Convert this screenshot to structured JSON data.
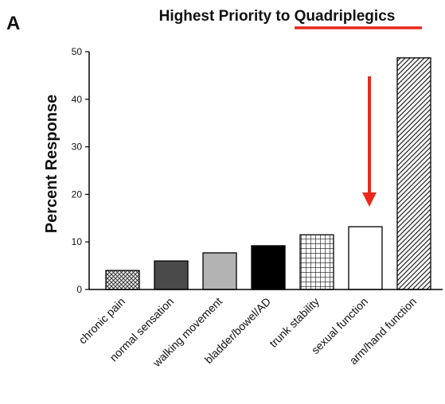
{
  "panel_letter": "A",
  "title_prefix": "Highest Priority to ",
  "title_emphasis": "Quadriplegics",
  "annotation_color": "#e8291c",
  "chart_data": {
    "type": "bar",
    "title": "Highest Priority to Quadriplegics",
    "xlabel": "",
    "ylabel": "Percent Response",
    "ylim": [
      0,
      50
    ],
    "yticks": [
      0,
      10,
      20,
      30,
      40,
      50
    ],
    "grid": false,
    "categories": [
      "chronic pain",
      "normal sensation",
      "walking movement",
      "bladder/bowel/AD",
      "trunk stability",
      "sexual function",
      "arm/hand function"
    ],
    "values": [
      4,
      6,
      7.7,
      9.2,
      11.5,
      13.2,
      48.7
    ],
    "fills": [
      "crosshatch",
      "#4a4a4a",
      "#b3b3b3",
      "#000000",
      "grid",
      "#ffffff",
      "diagonal"
    ],
    "annotations": [
      {
        "type": "arrow",
        "points_to": "sexual function",
        "color": "#e8291c"
      },
      {
        "type": "underline",
        "target": "Quadriplegics",
        "color": "#e8291c"
      }
    ]
  }
}
